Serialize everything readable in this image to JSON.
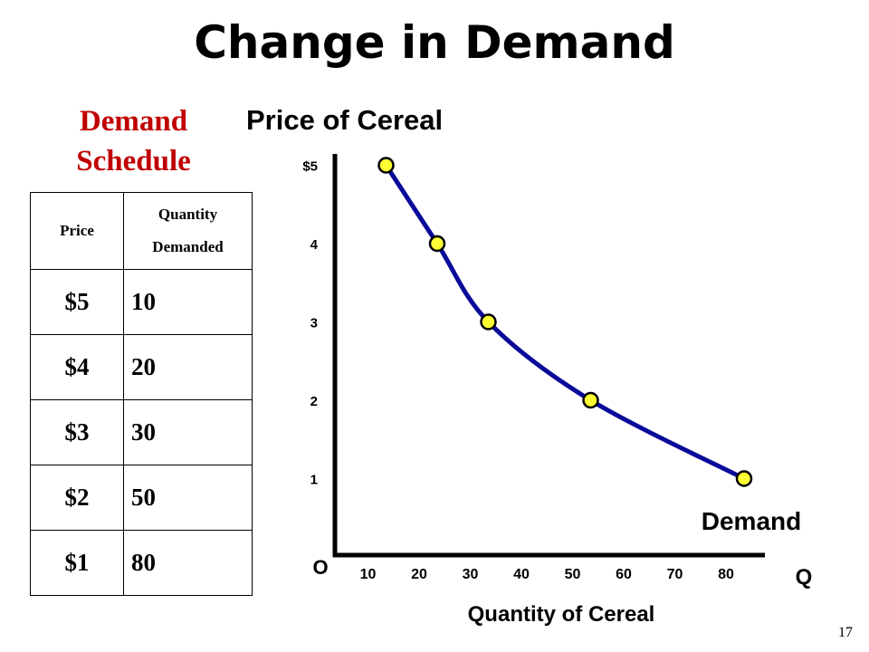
{
  "slide": {
    "title": "Change in Demand",
    "page_number": "17"
  },
  "schedule": {
    "title": "Demand Schedule",
    "header_price": "Price",
    "header_qty_line1": "Quantity",
    "header_qty_line2": "Demanded",
    "rows": [
      {
        "price": "$5",
        "qty": "10"
      },
      {
        "price": "$4",
        "qty": "20"
      },
      {
        "price": "$3",
        "qty": "30"
      },
      {
        "price": "$2",
        "qty": "50"
      },
      {
        "price": "$1",
        "qty": "80"
      }
    ]
  },
  "colors": {
    "schedule_title": "#c00000",
    "curve": "#0a0a9a",
    "point_fill": "#ffff33",
    "axis": "#000000"
  },
  "chart_data": {
    "type": "line",
    "title": "Price of Cereal",
    "xlabel": "Quantity of Cereal",
    "x_axis_end_label": "Q",
    "origin_label": "O",
    "curve_label": "Demand",
    "x_ticks": [
      "10",
      "20",
      "30",
      "40",
      "50",
      "60",
      "70",
      "80"
    ],
    "y_ticks": [
      "1",
      "2",
      "3",
      "4",
      "$5"
    ],
    "xlim": [
      0,
      80
    ],
    "ylim": [
      0,
      5
    ],
    "grid": false,
    "series": [
      {
        "name": "Demand",
        "points": [
          {
            "x": 10,
            "y": 5
          },
          {
            "x": 20,
            "y": 4
          },
          {
            "x": 30,
            "y": 3
          },
          {
            "x": 50,
            "y": 2
          },
          {
            "x": 80,
            "y": 1
          }
        ]
      }
    ]
  }
}
